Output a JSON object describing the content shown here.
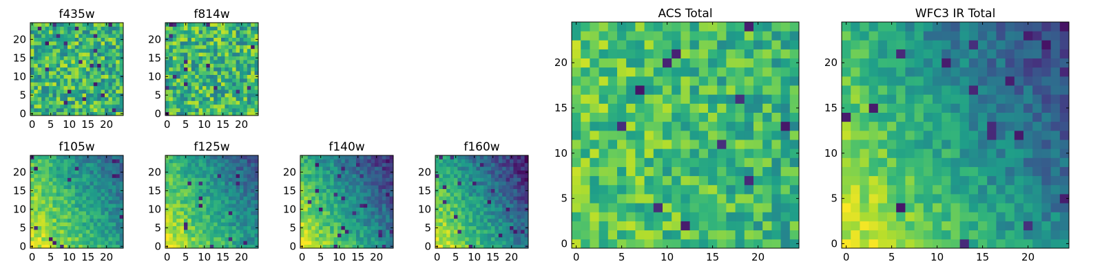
{
  "chart_data": [
    {
      "type": "heatmap",
      "title": "f435w",
      "rows": 25,
      "cols": 25,
      "xticks": [
        0,
        5,
        10,
        15,
        20
      ],
      "yticks": [
        0,
        5,
        10,
        15,
        20
      ],
      "xlim": [
        -0.5,
        24.5
      ],
      "ylim": [
        -0.5,
        24.5
      ],
      "colormap": "viridis",
      "gradient": "none"
    },
    {
      "type": "heatmap",
      "title": "f814w",
      "rows": 25,
      "cols": 25,
      "xticks": [
        0,
        5,
        10,
        15,
        20
      ],
      "yticks": [
        0,
        5,
        10,
        15,
        20
      ],
      "xlim": [
        -0.5,
        24.5
      ],
      "ylim": [
        -0.5,
        24.5
      ],
      "colormap": "viridis",
      "gradient": "none"
    },
    {
      "type": "heatmap",
      "title": "f105w",
      "rows": 25,
      "cols": 25,
      "xticks": [
        0,
        5,
        10,
        15,
        20
      ],
      "yticks": [
        0,
        5,
        10,
        15,
        20
      ],
      "xlim": [
        -0.5,
        24.5
      ],
      "ylim": [
        -0.5,
        24.5
      ],
      "colormap": "viridis",
      "gradient": "bright lower-left to dark upper-right"
    },
    {
      "type": "heatmap",
      "title": "f125w",
      "rows": 25,
      "cols": 25,
      "xticks": [
        0,
        5,
        10,
        15,
        20
      ],
      "yticks": [
        0,
        5,
        10,
        15,
        20
      ],
      "xlim": [
        -0.5,
        24.5
      ],
      "ylim": [
        -0.5,
        24.5
      ],
      "colormap": "viridis",
      "gradient": "bright lower-left to dark upper-right"
    },
    {
      "type": "heatmap",
      "title": "f140w",
      "rows": 25,
      "cols": 25,
      "xticks": [
        0,
        5,
        10,
        15,
        20
      ],
      "yticks": [
        0,
        5,
        10,
        15,
        20
      ],
      "xlim": [
        -0.5,
        24.5
      ],
      "ylim": [
        -0.5,
        24.5
      ],
      "colormap": "viridis",
      "gradient": "bright lower-left to dark upper-right"
    },
    {
      "type": "heatmap",
      "title": "f160w",
      "rows": 25,
      "cols": 25,
      "xticks": [
        0,
        5,
        10,
        15,
        20
      ],
      "yticks": [
        0,
        5,
        10,
        15,
        20
      ],
      "xlim": [
        -0.5,
        24.5
      ],
      "ylim": [
        -0.5,
        24.5
      ],
      "colormap": "viridis",
      "gradient": "bright lower-left to dark upper-right"
    },
    {
      "type": "heatmap",
      "title": "ACS Total",
      "rows": 25,
      "cols": 25,
      "xticks": [
        0,
        5,
        10,
        15,
        20
      ],
      "yticks": [
        0,
        5,
        10,
        15,
        20
      ],
      "xlim": [
        -0.5,
        24.5
      ],
      "ylim": [
        -0.5,
        24.5
      ],
      "colormap": "viridis",
      "gradient": "weak"
    },
    {
      "type": "heatmap",
      "title": "WFC3 IR Total",
      "rows": 25,
      "cols": 25,
      "xticks": [
        0,
        5,
        10,
        15,
        20
      ],
      "yticks": [
        0,
        5,
        10,
        15,
        20
      ],
      "xlim": [
        -0.5,
        24.5
      ],
      "ylim": [
        -0.5,
        24.5
      ],
      "colormap": "viridis",
      "gradient": "bright lower-left to dark upper-right"
    }
  ]
}
